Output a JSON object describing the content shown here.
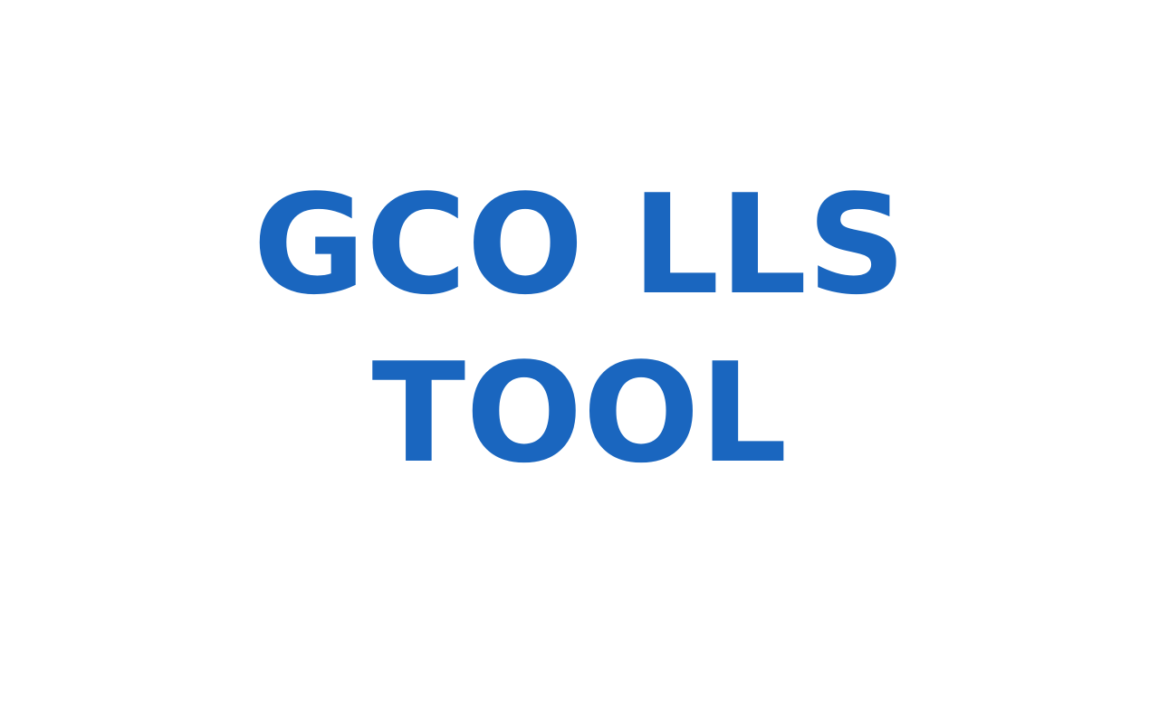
{
  "title": {
    "line1": "GCO LLS",
    "line2": "TOOL"
  },
  "colors": {
    "background": "#ffffff",
    "title_text": "#1a66bf"
  }
}
